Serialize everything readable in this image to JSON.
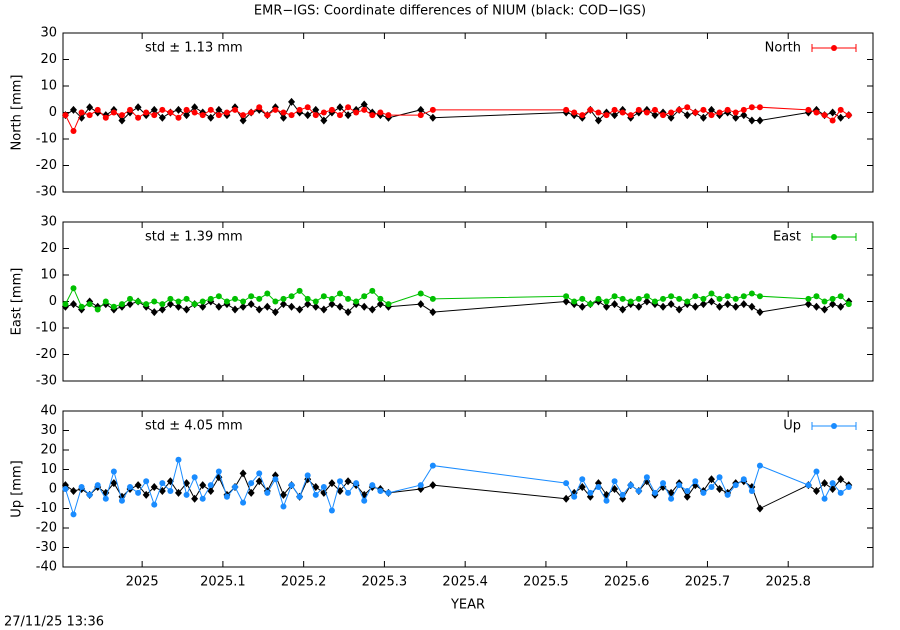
{
  "title": "EMR−IGS: Coordinate differences of NIUM (black: COD−IGS)",
  "timestamp": "27/11/25 13:36",
  "chart_data": [
    {
      "type": "line",
      "ylabel": "North [mm]",
      "annotation": "std ± 1.13 mm",
      "xlim": [
        2024.902,
        2025.905
      ],
      "xticks": [
        2025,
        2025.1,
        2025.2,
        2025.3,
        2025.4,
        2025.5,
        2025.6,
        2025.7,
        2025.8
      ],
      "xtick_labels": false,
      "ylim": [
        -30,
        30
      ],
      "yticks": [
        -30,
        -20,
        -10,
        0,
        10,
        20,
        30
      ],
      "legend": "top-right",
      "x": [
        2024.905,
        2024.915,
        2024.925,
        2024.935,
        2024.945,
        2024.955,
        2024.965,
        2024.975,
        2024.985,
        2024.995,
        2025.005,
        2025.015,
        2025.025,
        2025.035,
        2025.045,
        2025.055,
        2025.065,
        2025.075,
        2025.085,
        2025.095,
        2025.105,
        2025.115,
        2025.125,
        2025.135,
        2025.145,
        2025.155,
        2025.165,
        2025.175,
        2025.185,
        2025.195,
        2025.205,
        2025.215,
        2025.225,
        2025.235,
        2025.245,
        2025.255,
        2025.265,
        2025.275,
        2025.285,
        2025.295,
        2025.305,
        2025.345,
        2025.36,
        2025.525,
        2025.535,
        2025.545,
        2025.555,
        2025.565,
        2025.575,
        2025.585,
        2025.595,
        2025.605,
        2025.615,
        2025.625,
        2025.635,
        2025.645,
        2025.655,
        2025.665,
        2025.675,
        2025.685,
        2025.695,
        2025.705,
        2025.715,
        2025.725,
        2025.735,
        2025.745,
        2025.755,
        2025.765,
        2025.825,
        2025.835,
        2025.845,
        2025.855,
        2025.865,
        2025.875
      ],
      "series": [
        {
          "color": "#000000",
          "marker": "diamond",
          "values": [
            -1,
            1,
            -2,
            2,
            0,
            -1,
            1,
            -3,
            0,
            2,
            -1,
            1,
            -2,
            0,
            1,
            -1,
            2,
            0,
            -2,
            1,
            -1,
            2,
            -3,
            0,
            1,
            -1,
            2,
            -2,
            4,
            0,
            -1,
            1,
            -3,
            0,
            2,
            -1,
            1,
            3,
            0,
            -1,
            -2,
            1,
            -2,
            0,
            -1,
            -2,
            1,
            -3,
            0,
            -1,
            1,
            -2,
            0,
            1,
            -1,
            0,
            -2,
            1,
            -1,
            0,
            -2,
            1,
            -1,
            0,
            -2,
            -1,
            -3,
            -3,
            0,
            1,
            -1,
            0,
            -2,
            -1
          ]
        },
        {
          "name": "North",
          "color": "#ff0000",
          "marker": "circle",
          "values": [
            -1,
            -7,
            0,
            -1,
            1,
            -2,
            0,
            -1,
            1,
            -2,
            0,
            -1,
            1,
            0,
            -2,
            1,
            0,
            -1,
            1,
            -1,
            0,
            1,
            -1,
            0,
            2,
            -1,
            1,
            0,
            -1,
            1,
            2,
            -1,
            0,
            1,
            -1,
            2,
            0,
            1,
            -1,
            0,
            -1,
            -1,
            1,
            1,
            0,
            -1,
            1,
            0,
            -1,
            1,
            0,
            -1,
            1,
            0,
            1,
            -1,
            0,
            1,
            2,
            0,
            1,
            -1,
            0,
            1,
            0,
            1,
            2,
            2,
            1,
            0,
            -1,
            -3,
            1,
            -1
          ]
        }
      ]
    },
    {
      "type": "line",
      "ylabel": "East [mm]",
      "annotation": "std ± 1.39 mm",
      "xlim": [
        2024.902,
        2025.905
      ],
      "xticks": [
        2025,
        2025.1,
        2025.2,
        2025.3,
        2025.4,
        2025.5,
        2025.6,
        2025.7,
        2025.8
      ],
      "xtick_labels": false,
      "ylim": [
        -30,
        30
      ],
      "yticks": [
        -30,
        -20,
        -10,
        0,
        10,
        20,
        30
      ],
      "legend": "top-right",
      "x": [
        2024.905,
        2024.915,
        2024.925,
        2024.935,
        2024.945,
        2024.955,
        2024.965,
        2024.975,
        2024.985,
        2024.995,
        2025.005,
        2025.015,
        2025.025,
        2025.035,
        2025.045,
        2025.055,
        2025.065,
        2025.075,
        2025.085,
        2025.095,
        2025.105,
        2025.115,
        2025.125,
        2025.135,
        2025.145,
        2025.155,
        2025.165,
        2025.175,
        2025.185,
        2025.195,
        2025.205,
        2025.215,
        2025.225,
        2025.235,
        2025.245,
        2025.255,
        2025.265,
        2025.275,
        2025.285,
        2025.295,
        2025.305,
        2025.345,
        2025.36,
        2025.525,
        2025.535,
        2025.545,
        2025.555,
        2025.565,
        2025.575,
        2025.585,
        2025.595,
        2025.605,
        2025.615,
        2025.625,
        2025.635,
        2025.645,
        2025.655,
        2025.665,
        2025.675,
        2025.685,
        2025.695,
        2025.705,
        2025.715,
        2025.725,
        2025.735,
        2025.745,
        2025.755,
        2025.765,
        2025.825,
        2025.835,
        2025.845,
        2025.855,
        2025.865,
        2025.875
      ],
      "series": [
        {
          "color": "#000000",
          "marker": "diamond",
          "values": [
            -2,
            -1,
            -3,
            0,
            -2,
            -1,
            -3,
            -2,
            -1,
            0,
            -2,
            -4,
            -3,
            -1,
            -2,
            -3,
            -1,
            -2,
            0,
            -2,
            -1,
            -3,
            -2,
            -1,
            -3,
            -2,
            -4,
            -1,
            -2,
            -3,
            -1,
            -2,
            -3,
            -1,
            -2,
            -4,
            -1,
            -2,
            -3,
            -1,
            -2,
            -1,
            -4,
            0,
            -1,
            -2,
            -1,
            0,
            -2,
            -1,
            -3,
            -1,
            -2,
            0,
            -1,
            -2,
            -1,
            -3,
            -1,
            -2,
            -1,
            0,
            -2,
            -1,
            -2,
            -1,
            -2,
            -4,
            -1,
            -2,
            -3,
            -1,
            -2,
            0
          ]
        },
        {
          "name": "East",
          "color": "#00c000",
          "marker": "circle",
          "values": [
            -1,
            5,
            -2,
            -1,
            -3,
            0,
            -2,
            -1,
            1,
            0,
            -1,
            0,
            -1,
            1,
            0,
            1,
            -1,
            0,
            1,
            2,
            0,
            1,
            0,
            2,
            1,
            3,
            0,
            1,
            2,
            4,
            1,
            0,
            2,
            1,
            3,
            1,
            0,
            2,
            4,
            1,
            -1,
            3,
            1,
            2,
            0,
            1,
            -1,
            1,
            0,
            2,
            1,
            0,
            1,
            2,
            0,
            1,
            2,
            1,
            0,
            2,
            1,
            3,
            1,
            2,
            1,
            2,
            3,
            2,
            1,
            2,
            0,
            1,
            2,
            -1
          ]
        }
      ]
    },
    {
      "type": "line",
      "ylabel": "Up [mm]",
      "annotation": "std ± 4.05 mm",
      "xlabel": "YEAR",
      "xlim": [
        2024.902,
        2025.905
      ],
      "xticks": [
        2025,
        2025.1,
        2025.2,
        2025.3,
        2025.4,
        2025.5,
        2025.6,
        2025.7,
        2025.8
      ],
      "xtick_labels": true,
      "ylim": [
        -40,
        40
      ],
      "yticks": [
        -40,
        -30,
        -20,
        -10,
        0,
        10,
        20,
        30,
        40
      ],
      "legend": "top-right",
      "x": [
        2024.905,
        2024.915,
        2024.925,
        2024.935,
        2024.945,
        2024.955,
        2024.965,
        2024.975,
        2024.985,
        2024.995,
        2025.005,
        2025.015,
        2025.025,
        2025.035,
        2025.045,
        2025.055,
        2025.065,
        2025.075,
        2025.085,
        2025.095,
        2025.105,
        2025.115,
        2025.125,
        2025.135,
        2025.145,
        2025.155,
        2025.165,
        2025.175,
        2025.185,
        2025.195,
        2025.205,
        2025.215,
        2025.225,
        2025.235,
        2025.245,
        2025.255,
        2025.265,
        2025.275,
        2025.285,
        2025.295,
        2025.305,
        2025.345,
        2025.36,
        2025.525,
        2025.535,
        2025.545,
        2025.555,
        2025.565,
        2025.575,
        2025.585,
        2025.595,
        2025.605,
        2025.615,
        2025.625,
        2025.635,
        2025.645,
        2025.655,
        2025.665,
        2025.675,
        2025.685,
        2025.695,
        2025.705,
        2025.715,
        2025.725,
        2025.735,
        2025.745,
        2025.755,
        2025.765,
        2025.825,
        2025.835,
        2025.845,
        2025.855,
        2025.865,
        2025.875
      ],
      "series": [
        {
          "color": "#000000",
          "marker": "diamond",
          "values": [
            2,
            -1,
            0,
            -3,
            1,
            -2,
            3,
            -4,
            0,
            2,
            -3,
            1,
            -1,
            4,
            -2,
            3,
            -5,
            2,
            -1,
            6,
            -3,
            1,
            8,
            -2,
            4,
            -1,
            7,
            -3,
            2,
            -4,
            5,
            1,
            -2,
            3,
            -1,
            4,
            2,
            -3,
            1,
            0,
            -2,
            0,
            2,
            -5,
            -2,
            1,
            -4,
            3,
            -3,
            0,
            -5,
            2,
            -1,
            4,
            -3,
            1,
            -2,
            3,
            -4,
            2,
            -1,
            5,
            0,
            -2,
            3,
            4,
            1,
            -10,
            2,
            -1,
            3,
            0,
            5,
            2
          ]
        },
        {
          "name": "Up",
          "color": "#1a8cff",
          "marker": "circle",
          "values": [
            0,
            -13,
            1,
            -3,
            2,
            -5,
            9,
            -6,
            1,
            -2,
            4,
            -8,
            3,
            -1,
            15,
            -3,
            6,
            -5,
            2,
            9,
            -4,
            1,
            -7,
            3,
            8,
            -2,
            5,
            -9,
            2,
            -4,
            7,
            -3,
            1,
            -11,
            4,
            -2,
            3,
            -6,
            2,
            -1,
            -2,
            2,
            12,
            3,
            -4,
            5,
            -2,
            1,
            -6,
            4,
            -3,
            2,
            -1,
            6,
            -2,
            3,
            -5,
            2,
            -1,
            4,
            -2,
            1,
            6,
            -3,
            2,
            5,
            -1,
            12,
            2,
            9,
            -5,
            3,
            -2,
            1
          ]
        }
      ]
    }
  ]
}
